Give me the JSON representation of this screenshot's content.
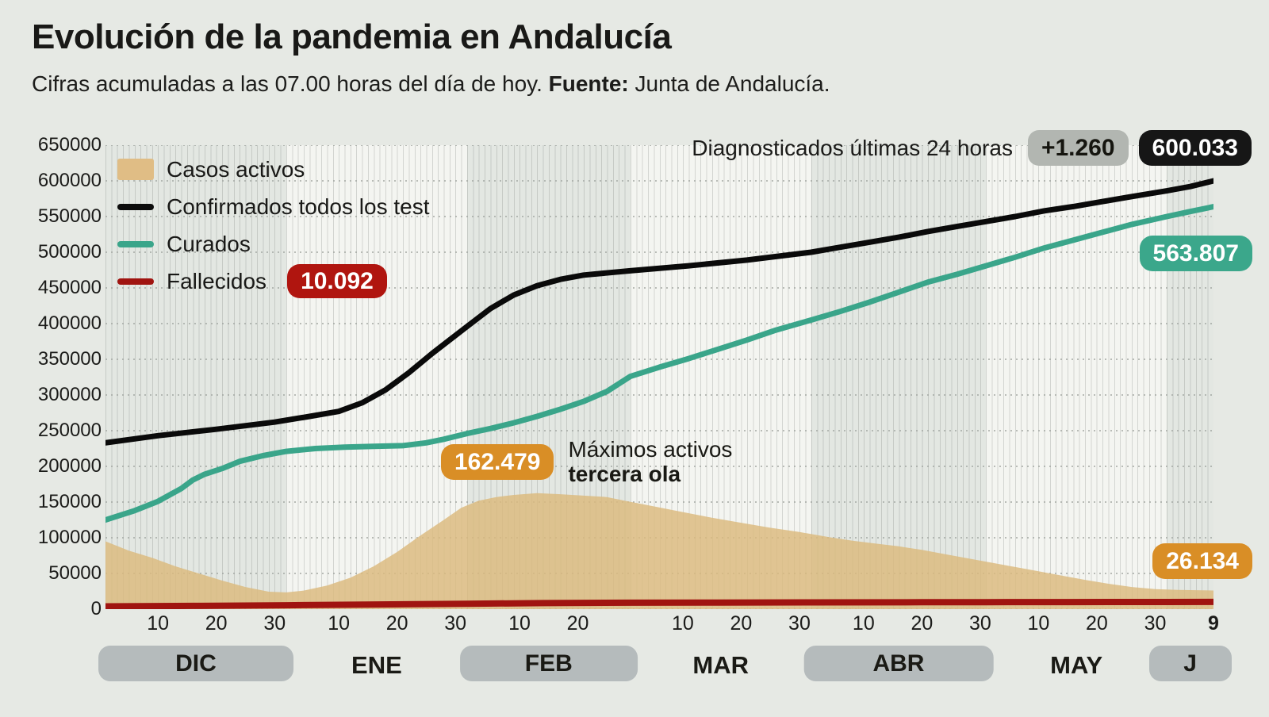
{
  "header": {
    "title": "Evolución de la pandemia en Andalucía",
    "subtitle_pre": "Cifras acumuladas a las 07.00 horas del día de hoy. ",
    "source_label": "Fuente:",
    "source_value": " Junta de Andalucía."
  },
  "annotations": {
    "diagnosed_label": "Diagnosticados últimas 24 horas",
    "diagnosed_delta": "+1.260",
    "diagnosed_total": "600.033",
    "fallecidos_badge": "10.092",
    "max_active_badge": "162.479",
    "max_active_line1": "Máximos activos",
    "max_active_line2": "tercera ola",
    "curados_badge": "563.807",
    "activos_badge": "26.134"
  },
  "colors": {
    "page_background": "#e6e9e4",
    "band_shaded": "#e3e7e2",
    "band_light": "#f4f5f1",
    "area_activos": "#dcb97c",
    "line_confirmados": "#0a0a0a",
    "line_curados": "#3aa58a",
    "line_fallecidos": "#a01410",
    "badge_orange": "#d98e26",
    "badge_teal": "#3ba78b",
    "badge_red": "#b0150f",
    "badge_black": "#161616",
    "badge_gray": "#b2b6b1",
    "month_pill": "#b5bbbc"
  },
  "chart_data": {
    "type": "area",
    "title": "Evolución de la pandemia en Andalucía",
    "x_unit": "días desde el 1 de diciembre",
    "x_total_days": 190,
    "grid": true,
    "legend_position": "top-left",
    "y_axis": {
      "min": 0,
      "max": 650000,
      "step": 50000
    },
    "months": [
      {
        "label": "DIC",
        "days": 31,
        "pill": true,
        "shaded": true,
        "ticks": [
          10,
          20,
          30
        ]
      },
      {
        "label": "ENE",
        "days": 31,
        "pill": false,
        "shaded": false,
        "ticks": [
          10,
          20,
          30
        ]
      },
      {
        "label": "FEB",
        "days": 28,
        "pill": true,
        "shaded": true,
        "ticks": [
          10,
          20
        ]
      },
      {
        "label": "MAR",
        "days": 31,
        "pill": false,
        "shaded": false,
        "ticks": [
          10,
          20,
          30
        ]
      },
      {
        "label": "ABR",
        "days": 30,
        "pill": true,
        "shaded": true,
        "ticks": [
          10,
          20,
          30
        ]
      },
      {
        "label": "MAY",
        "days": 31,
        "pill": false,
        "shaded": false,
        "ticks": [
          10,
          20,
          30
        ]
      },
      {
        "label": "J",
        "days": 9,
        "pill": true,
        "shaded": true,
        "ticks": [
          9
        ],
        "final": true
      }
    ],
    "series": [
      {
        "name": "Casos activos",
        "type": "area",
        "color": "#dcb97c",
        "end_value": 26134,
        "peak_value": 162479,
        "points": [
          [
            0,
            95000
          ],
          [
            4,
            82000
          ],
          [
            8,
            72000
          ],
          [
            12,
            60000
          ],
          [
            16,
            50000
          ],
          [
            20,
            40000
          ],
          [
            24,
            31000
          ],
          [
            28,
            24500
          ],
          [
            31,
            23500
          ],
          [
            34,
            26000
          ],
          [
            38,
            33000
          ],
          [
            42,
            44000
          ],
          [
            46,
            60000
          ],
          [
            50,
            80000
          ],
          [
            54,
            103000
          ],
          [
            58,
            125000
          ],
          [
            61,
            142000
          ],
          [
            64,
            152000
          ],
          [
            67,
            157000
          ],
          [
            70,
            160000
          ],
          [
            74,
            162479
          ],
          [
            78,
            161000
          ],
          [
            82,
            159000
          ],
          [
            86,
            157000
          ],
          [
            89,
            152000
          ],
          [
            94,
            144000
          ],
          [
            99,
            136000
          ],
          [
            104,
            128000
          ],
          [
            109,
            121000
          ],
          [
            114,
            114000
          ],
          [
            119,
            108000
          ],
          [
            124,
            101000
          ],
          [
            128,
            96000
          ],
          [
            132,
            92000
          ],
          [
            136,
            88000
          ],
          [
            140,
            83000
          ],
          [
            144,
            77000
          ],
          [
            148,
            71000
          ],
          [
            152,
            65000
          ],
          [
            156,
            59000
          ],
          [
            160,
            53000
          ],
          [
            164,
            47000
          ],
          [
            168,
            41000
          ],
          [
            172,
            35500
          ],
          [
            176,
            31000
          ],
          [
            180,
            28000
          ],
          [
            184,
            27000
          ],
          [
            187,
            26500
          ],
          [
            190,
            26134
          ]
        ]
      },
      {
        "name": "Confirmados todos los test",
        "type": "line",
        "color": "#0a0a0a",
        "end_value": 600033,
        "points": [
          [
            0,
            233000
          ],
          [
            9,
            243000
          ],
          [
            19,
            252000
          ],
          [
            29,
            262000
          ],
          [
            35,
            270000
          ],
          [
            40,
            277000
          ],
          [
            44,
            289000
          ],
          [
            48,
            307000
          ],
          [
            52,
            331000
          ],
          [
            56,
            358000
          ],
          [
            59,
            377000
          ],
          [
            62,
            396000
          ],
          [
            66,
            421000
          ],
          [
            70,
            440000
          ],
          [
            74,
            453000
          ],
          [
            78,
            462000
          ],
          [
            82,
            468000
          ],
          [
            90,
            474000
          ],
          [
            100,
            481000
          ],
          [
            110,
            489000
          ],
          [
            121,
            500000
          ],
          [
            126,
            507000
          ],
          [
            131,
            514000
          ],
          [
            136,
            521000
          ],
          [
            141,
            529000
          ],
          [
            146,
            536000
          ],
          [
            151,
            543000
          ],
          [
            156,
            550000
          ],
          [
            161,
            558000
          ],
          [
            166,
            564000
          ],
          [
            171,
            571000
          ],
          [
            176,
            578000
          ],
          [
            182,
            586000
          ],
          [
            186,
            592000
          ],
          [
            190,
            600033
          ]
        ]
      },
      {
        "name": "Curados",
        "type": "line",
        "color": "#3aa58a",
        "end_value": 563807,
        "points": [
          [
            0,
            125000
          ],
          [
            5,
            138000
          ],
          [
            9,
            151000
          ],
          [
            13,
            169000
          ],
          [
            15,
            181000
          ],
          [
            17,
            189000
          ],
          [
            20,
            197000
          ],
          [
            23,
            207000
          ],
          [
            27,
            215000
          ],
          [
            31,
            221000
          ],
          [
            36,
            225000
          ],
          [
            41,
            227000
          ],
          [
            46,
            228000
          ],
          [
            51,
            229000
          ],
          [
            55,
            233000
          ],
          [
            58,
            238000
          ],
          [
            62,
            246000
          ],
          [
            66,
            253000
          ],
          [
            70,
            261000
          ],
          [
            74,
            270000
          ],
          [
            78,
            280000
          ],
          [
            82,
            291000
          ],
          [
            86,
            305000
          ],
          [
            90,
            326000
          ],
          [
            95,
            339000
          ],
          [
            100,
            351000
          ],
          [
            105,
            364000
          ],
          [
            110,
            377000
          ],
          [
            115,
            391000
          ],
          [
            121,
            405000
          ],
          [
            126,
            417000
          ],
          [
            131,
            430000
          ],
          [
            136,
            444000
          ],
          [
            141,
            458000
          ],
          [
            146,
            469000
          ],
          [
            151,
            481000
          ],
          [
            156,
            493000
          ],
          [
            161,
            506000
          ],
          [
            166,
            517000
          ],
          [
            171,
            528000
          ],
          [
            176,
            539000
          ],
          [
            182,
            550000
          ],
          [
            186,
            557000
          ],
          [
            190,
            563807
          ]
        ]
      },
      {
        "name": "Fallecidos",
        "type": "line",
        "color": "#a01410",
        "end_value": 10092,
        "points": [
          [
            0,
            3900
          ],
          [
            15,
            4600
          ],
          [
            31,
            5400
          ],
          [
            45,
            6400
          ],
          [
            62,
            7600
          ],
          [
            75,
            8500
          ],
          [
            90,
            9000
          ],
          [
            105,
            9200
          ],
          [
            121,
            9400
          ],
          [
            140,
            9650
          ],
          [
            151,
            9750
          ],
          [
            165,
            9900
          ],
          [
            182,
            10050
          ],
          [
            190,
            10092
          ]
        ]
      }
    ]
  }
}
